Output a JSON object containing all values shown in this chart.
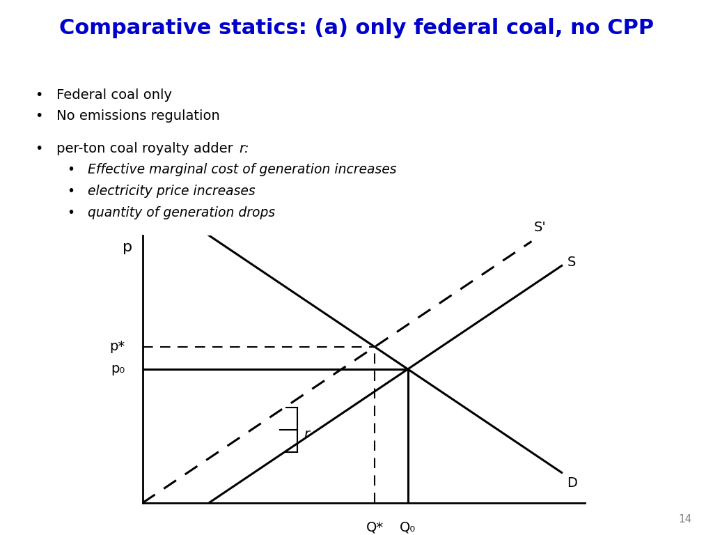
{
  "title": "Comparative statics: (a) only federal coal, no CPP",
  "title_color": "#0000CC",
  "title_fontsize": 22,
  "title_fontstyle": "bold",
  "header_bg_color": "#D6E8F0",
  "background_color": "#FFFFFF",
  "bullet1": "Federal coal only",
  "bullet2": "No emissions regulation",
  "sub_bullet_header": "per-ton coal royalty adder ",
  "sub_bullet_header_r": "r:",
  "sub_bullet1": "Effective marginal cost of generation increases",
  "sub_bullet2": "electricity price increases",
  "sub_bullet3": "quantity of generation drops",
  "page_number": "14",
  "graph": {
    "p_axis_label": "p",
    "p0_label": "p₀",
    "pstar_label": "p*",
    "q0_label": "Q₀",
    "qstar_label": "Q*",
    "S_label": "S",
    "Sprime_label": "S'",
    "D_label": "D",
    "r_label": "r",
    "Q0": 6.0,
    "p0": 4.5,
    "r_val": 1.5,
    "Qstar": 5.25,
    "pstar": 5.25,
    "xlim": [
      0,
      10
    ],
    "ylim": [
      0,
      9
    ]
  }
}
